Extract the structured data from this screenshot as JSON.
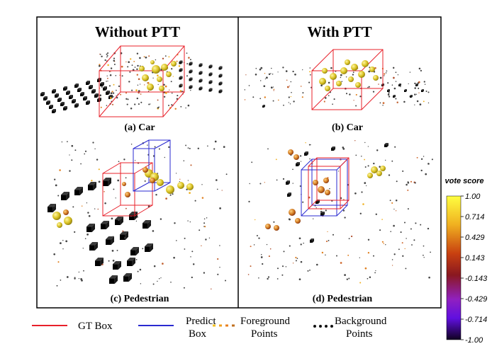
{
  "panels": {
    "left_title": "Without PTT",
    "right_title": "With PTT",
    "sub_a": "(a) Car",
    "sub_b": "(b) Car",
    "sub_c": "(c) Pedestrian",
    "sub_d": "(d) Pedestrian"
  },
  "legend": {
    "gt": "GT Box",
    "predict_1": "Predict",
    "predict_2": "Box",
    "fg_1": "Foreground",
    "fg_2": "Points",
    "bg_1": "Background",
    "bg_2": "Points"
  },
  "colorbar": {
    "title": "vote score",
    "ticks": [
      "1.00",
      "0.714",
      "0.429",
      "0.143",
      "-0.143",
      "-0.429",
      "-0.714",
      "-1.00"
    ]
  },
  "colors": {
    "gt_box": "#e8202a",
    "predict_box": "#2a2ad0",
    "foreground": "#f0a020",
    "background": "#111111"
  }
}
